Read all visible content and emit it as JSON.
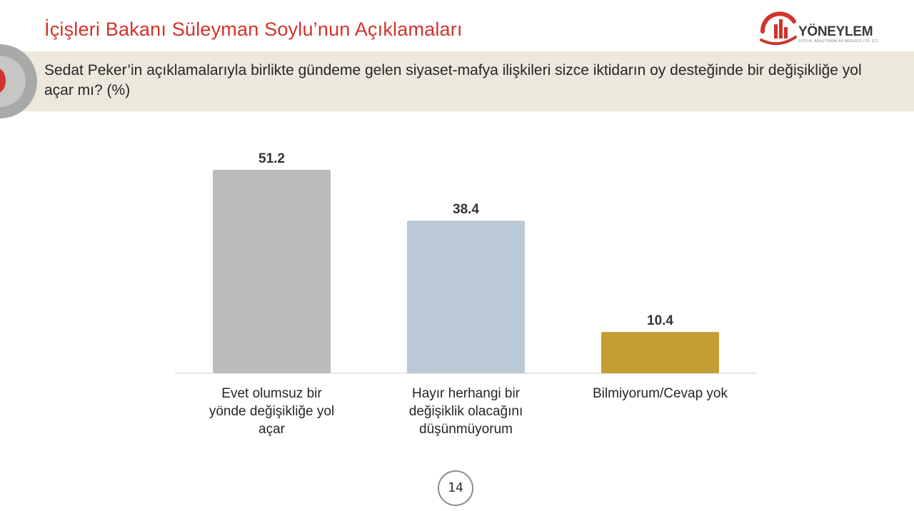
{
  "header": {
    "title": "İçişleri Bakanı Süleyman Soylu’nun Açıklamaları",
    "logo_name": "YÖNEYLEM",
    "logo_subtitle": "SOSYAL ARAŞTIRMALAR MERKEZİ LTD. ŞTİ."
  },
  "question": "Sedat Peker’in açıklamalarıyla birlikte gündeme gelen siyaset-mafya ilişkileri sizce iktidarın oy desteğinde bir değişikliğe yol açar mı? (%)",
  "colors": {
    "accent": "#d0342c",
    "band": "#ede8dc",
    "bar_evet": "#bdbcba",
    "bar_hayir": "#bcc9d6",
    "bar_bilmiyorum": "#c49d35"
  },
  "chart_data": {
    "type": "bar",
    "categories": [
      [
        "Evet olumsuz bir",
        "yönde değişikliğe yol",
        "açar"
      ],
      [
        "Hayır herhangi bir",
        "değişiklik olacağını",
        "düşünmüyorum"
      ],
      [
        "Bilmiyorum/Cevap yok"
      ]
    ],
    "values": [
      51.2,
      38.4,
      10.4
    ],
    "value_labels": [
      "51.2",
      "38.4",
      "10.4"
    ],
    "bar_colors": [
      "#bdbcba",
      "#bcc9d6",
      "#c49d35"
    ],
    "title": "",
    "xlabel": "",
    "ylabel": "",
    "grid": false,
    "legend": "none"
  },
  "footer": {
    "page_number": "14"
  }
}
